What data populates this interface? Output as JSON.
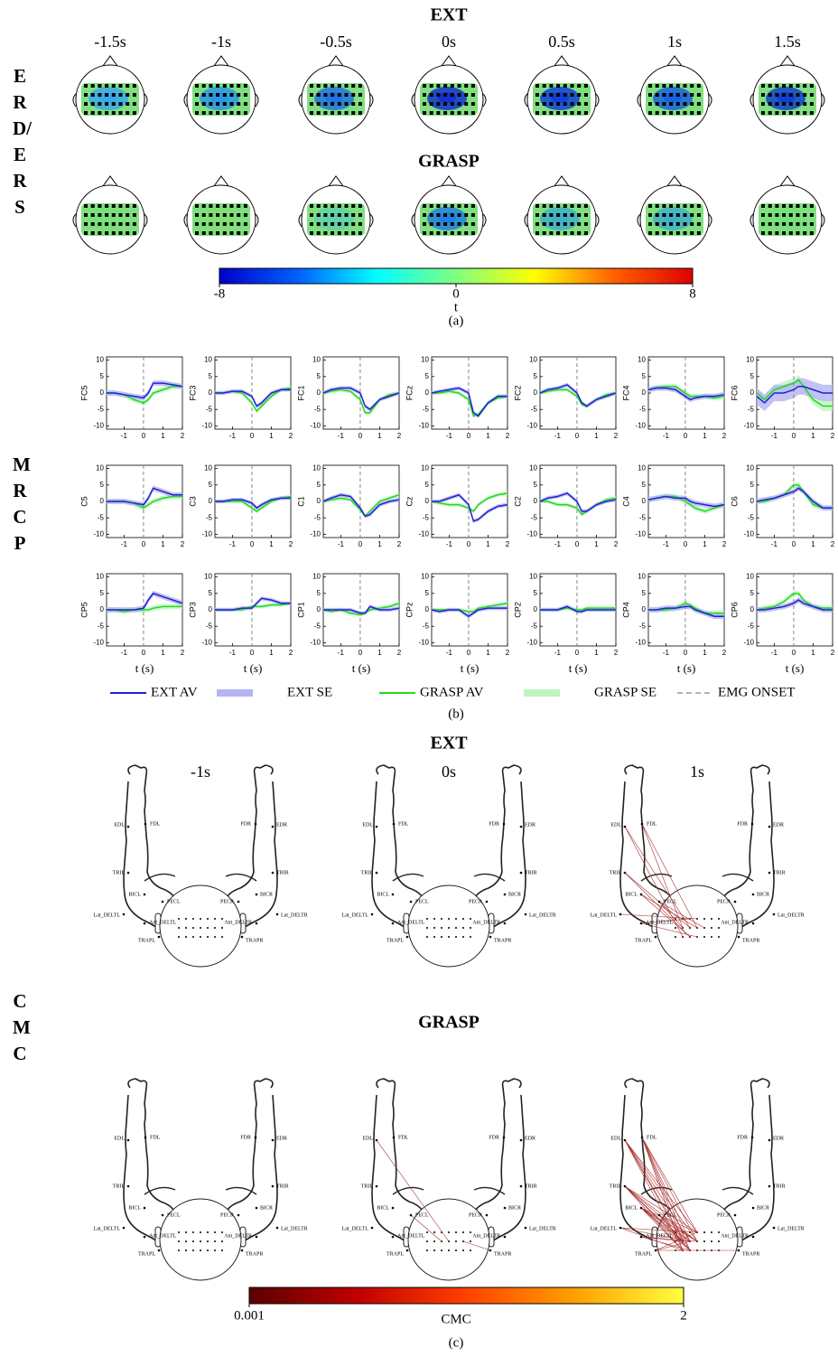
{
  "panel_a": {
    "titles": [
      "EXT",
      "GRASP"
    ],
    "times": [
      "-1.5s",
      "-1s",
      "-0.5s",
      "0s",
      "0.5s",
      "1s",
      "1.5s"
    ],
    "row_label": "ERD/ERS",
    "map_colors": {
      "background": "#80e080",
      "ext": [
        "#3aa8e8",
        "#2a96e4",
        "#2272e0",
        "#1030d0",
        "#1040d8",
        "#1860e0",
        "#1040d0"
      ],
      "grasp": [
        "#78e078",
        "#80e070",
        "#60d0a8",
        "#2080e0",
        "#40b0c8",
        "#40b0c8",
        "#78e078"
      ]
    },
    "colorbar": {
      "colors": [
        "#0000c8",
        "#0060ff",
        "#00ffff",
        "#80ff80",
        "#ffff00",
        "#ff6000",
        "#e00000"
      ],
      "lim": [
        -8,
        8
      ],
      "ticks": [
        -8,
        0,
        8
      ],
      "label": "t"
    },
    "caption": "(a)"
  },
  "panel_b": {
    "row_label": "MRCP",
    "x": [
      -1.9,
      -1.5,
      -1,
      -0.5,
      0,
      0.25,
      0.5,
      1,
      1.5,
      2
    ],
    "xlim": [
      -1.9,
      2
    ],
    "xticks": [
      -1,
      0,
      1,
      2
    ],
    "ylim": [
      -11,
      11
    ],
    "yticks": [
      10,
      5,
      0,
      -5,
      -10
    ],
    "onset": 0,
    "xlabel": "t (s)",
    "colors": {
      "ext": "#2020d8",
      "ext_se": "#b4b4f0",
      "grasp": "#20d820",
      "grasp_se": "#bff5bf",
      "onset": "#888888"
    },
    "plots": [
      {
        "name": "FC5",
        "ext": [
          0,
          0,
          -0.5,
          -1,
          -1.5,
          0,
          3,
          3,
          2.5,
          2
        ],
        "grasp": [
          0,
          0,
          -0.5,
          -2,
          -3,
          -2,
          0,
          1,
          2,
          2
        ],
        "ext_se": 0.8,
        "grasp_se": 0.8
      },
      {
        "name": "FC3",
        "ext": [
          0,
          0,
          0.5,
          0.5,
          -1,
          -4,
          -3,
          0,
          1,
          1
        ],
        "grasp": [
          0,
          0,
          0.5,
          0,
          -3,
          -5.5,
          -4,
          -1,
          1,
          1.5
        ],
        "ext_se": 0.6,
        "grasp_se": 0.6
      },
      {
        "name": "FC1",
        "ext": [
          0,
          1,
          1.5,
          1.5,
          0,
          -4,
          -5,
          -2,
          -1,
          0
        ],
        "grasp": [
          0,
          0.5,
          1,
          0.5,
          -2,
          -6,
          -6,
          -2,
          -0.5,
          0
        ],
        "ext_se": 0.6,
        "grasp_se": 0.6
      },
      {
        "name": "FCz",
        "ext": [
          0,
          0.5,
          1,
          1.5,
          0,
          -6,
          -7,
          -3,
          -1,
          -1
        ],
        "grasp": [
          0,
          0,
          0.5,
          0,
          -2,
          -7,
          -6.5,
          -3,
          -1.5,
          -1
        ],
        "ext_se": 0.6,
        "grasp_se": 0.6
      },
      {
        "name": "FC2",
        "ext": [
          0,
          1,
          1.5,
          2.5,
          0,
          -3,
          -4,
          -2,
          -1,
          0
        ],
        "grasp": [
          0,
          0.5,
          1,
          1,
          -1,
          -3.5,
          -4,
          -2,
          -0.5,
          0
        ],
        "ext_se": 0.6,
        "grasp_se": 0.6
      },
      {
        "name": "FC4",
        "ext": [
          1,
          1.5,
          1.5,
          1,
          -1,
          -2,
          -1.5,
          -1,
          -1,
          -0.5
        ],
        "grasp": [
          1,
          1.5,
          2,
          2,
          0,
          -1,
          -1,
          -1,
          -1.5,
          -1
        ],
        "ext_se": 0.8,
        "grasp_se": 0.8
      },
      {
        "name": "FC6",
        "ext": [
          -1,
          -3,
          0,
          0,
          1,
          2,
          2,
          1,
          0,
          0
        ],
        "grasp": [
          0,
          -2,
          1,
          2,
          3,
          4,
          2,
          -2,
          -4,
          -4
        ],
        "ext_se": 2.5,
        "grasp_se": 1.5
      },
      {
        "name": "C5",
        "ext": [
          0,
          0,
          0,
          -0.5,
          -1,
          1,
          4,
          3,
          2,
          2
        ],
        "grasp": [
          0,
          0,
          0,
          -0.5,
          -2,
          -1,
          0,
          1,
          1.5,
          1.5
        ],
        "ext_se": 0.8,
        "grasp_se": 0.8
      },
      {
        "name": "C3",
        "ext": [
          0,
          0,
          0.5,
          0.5,
          -0.5,
          -2,
          -1,
          0.5,
          1,
          1
        ],
        "grasp": [
          0,
          0,
          0,
          0,
          -2,
          -3,
          -2,
          0,
          1,
          1.5
        ],
        "ext_se": 0.6,
        "grasp_se": 0.6
      },
      {
        "name": "C1",
        "ext": [
          0,
          1,
          2,
          1.5,
          -2,
          -4.5,
          -4,
          -1,
          0,
          0.5
        ],
        "grasp": [
          0,
          0.5,
          1,
          0.5,
          -2.5,
          -4.5,
          -3,
          0,
          1,
          2
        ],
        "ext_se": 0.6,
        "grasp_se": 0.6
      },
      {
        "name": "Cz",
        "ext": [
          0,
          0,
          1,
          2,
          -1,
          -6,
          -5.5,
          -3,
          -1.5,
          -1
        ],
        "grasp": [
          0,
          -0.5,
          -1,
          -1,
          -2,
          -3,
          -1,
          1,
          2,
          2.5
        ],
        "ext_se": 0.6,
        "grasp_se": 0.6
      },
      {
        "name": "C2",
        "ext": [
          0,
          1,
          1.5,
          2.5,
          0,
          -3,
          -3,
          -1,
          0,
          0.5
        ],
        "grasp": [
          0,
          0,
          -1,
          -1,
          -2,
          -4,
          -3,
          -1,
          0.5,
          1
        ],
        "ext_se": 0.6,
        "grasp_se": 0.6
      },
      {
        "name": "C4",
        "ext": [
          0.5,
          1,
          1.5,
          1,
          1,
          0,
          -0.5,
          -1,
          -1.5,
          -1
        ],
        "grasp": [
          0.5,
          1,
          1.5,
          1.5,
          0,
          -1,
          -2,
          -3,
          -2,
          -1
        ],
        "ext_se": 0.8,
        "grasp_se": 0.8
      },
      {
        "name": "C6",
        "ext": [
          0,
          0.5,
          1,
          2,
          3,
          4,
          3,
          0,
          -2,
          -2
        ],
        "grasp": [
          0,
          0,
          1,
          2,
          5,
          5,
          3,
          -1,
          -2,
          -2
        ],
        "ext_se": 0.8,
        "grasp_se": 0.8
      },
      {
        "name": "CP5",
        "ext": [
          0,
          0,
          0,
          0,
          0.5,
          3,
          5,
          4,
          3,
          2
        ],
        "grasp": [
          0,
          0,
          -0.5,
          0,
          0,
          0,
          0.5,
          1,
          1,
          1
        ],
        "ext_se": 0.8,
        "grasp_se": 0.8
      },
      {
        "name": "CP3",
        "ext": [
          0,
          0,
          0,
          0.5,
          0.5,
          2,
          3.5,
          3,
          2,
          2
        ],
        "grasp": [
          0,
          0,
          0,
          0,
          1,
          1,
          1,
          1.5,
          1.5,
          2
        ],
        "ext_se": 0.6,
        "grasp_se": 0.6
      },
      {
        "name": "CP1",
        "ext": [
          0,
          0,
          0,
          0,
          -1,
          -1,
          1,
          0,
          0,
          0.5
        ],
        "grasp": [
          0,
          -0.5,
          0,
          -1,
          -1.5,
          -1,
          0,
          0.5,
          1,
          2
        ],
        "ext_se": 0.6,
        "grasp_se": 0.6
      },
      {
        "name": "CPz",
        "ext": [
          0,
          -0.5,
          0,
          0,
          -2,
          -1,
          0,
          0.5,
          0.5,
          0.5
        ],
        "grasp": [
          0,
          0,
          0,
          0,
          -0.5,
          -0.5,
          0.5,
          1,
          1.5,
          2
        ],
        "ext_se": 0.6,
        "grasp_se": 0.6
      },
      {
        "name": "CP2",
        "ext": [
          0,
          0,
          0,
          1,
          -0.5,
          -0.5,
          0,
          0,
          0,
          0
        ],
        "grasp": [
          0,
          0,
          0,
          0.5,
          0,
          0,
          0.5,
          0.5,
          0.5,
          0.5
        ],
        "ext_se": 0.6,
        "grasp_se": 0.6
      },
      {
        "name": "CP4",
        "ext": [
          0,
          0,
          0.5,
          0.5,
          1,
          1,
          0,
          -1,
          -2,
          -2
        ],
        "grasp": [
          0,
          0,
          0,
          0.5,
          2,
          1.5,
          0.5,
          -1,
          -1,
          -1
        ],
        "ext_se": 0.8,
        "grasp_se": 0.8
      },
      {
        "name": "CP6",
        "ext": [
          0,
          0,
          0.5,
          1,
          2,
          3,
          2,
          1,
          0,
          0
        ],
        "grasp": [
          0,
          0.5,
          1,
          2.5,
          5,
          5,
          3,
          1,
          0.5,
          0.5
        ],
        "ext_se": 0.8,
        "grasp_se": 0.8
      }
    ],
    "legend": [
      "EXT AV",
      "EXT SE",
      "GRASP AV",
      "GRASP SE",
      "EMG ONSET"
    ],
    "caption": "(b)"
  },
  "panel_c": {
    "titles": [
      "EXT",
      "GRASP"
    ],
    "times": [
      "-1s",
      "0s",
      "1s"
    ],
    "row_label": "CMC",
    "muscles_left": [
      "FDL",
      "EDL",
      "TRIL",
      "BICL",
      "PECL",
      "Lat_DELTL",
      "Ant_DELTL",
      "TRAPL"
    ],
    "muscles_right": [
      "FDR",
      "EDR",
      "TRIR",
      "BICR",
      "PECR",
      "Lat_DELTR",
      "Ant_DELTR",
      "TRAPR"
    ],
    "link_color": "#a83030",
    "colorbar": {
      "colors": [
        "#5a0000",
        "#c00000",
        "#ff4000",
        "#ffa000",
        "#ffff40"
      ],
      "lim": [
        0.001,
        2
      ],
      "ticks": [
        {
          "value": 0.001,
          "label": "0.001"
        },
        2
      ],
      "label": "CMC"
    },
    "caption": "(c)"
  }
}
